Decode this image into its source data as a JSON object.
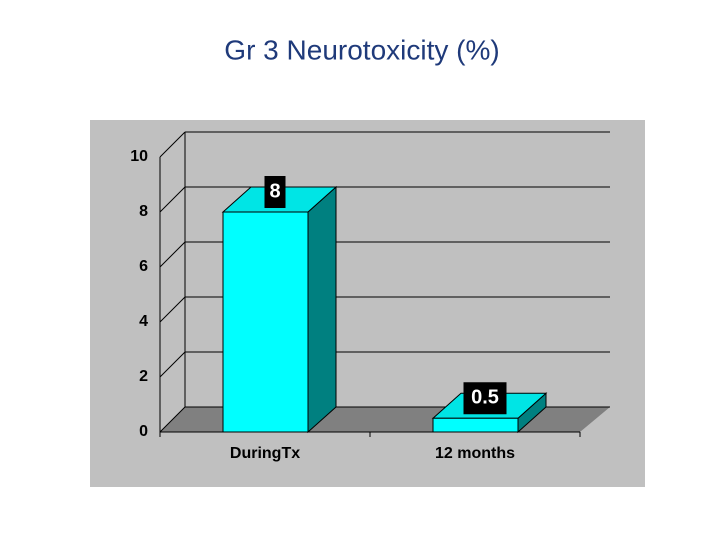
{
  "chart_data": {
    "type": "bar",
    "title": "Gr 3 Neurotoxicity (%)",
    "categories": [
      "DuringTx",
      "12 months"
    ],
    "values": [
      8,
      0.5
    ],
    "color": "#00ffff",
    "ylim": [
      0,
      10
    ],
    "yticks": [
      0,
      2,
      4,
      6,
      8,
      10
    ],
    "grid": true
  }
}
